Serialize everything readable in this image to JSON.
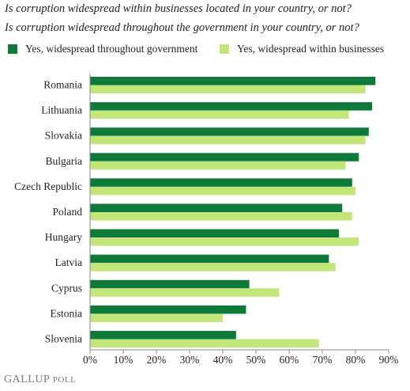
{
  "titles": {
    "line1": "Is corruption widespread within businesses located in your country, or not?",
    "line2": "Is corruption widespread throughout the government in your country, or not?"
  },
  "legend": {
    "government": "Yes, widespread throughout government",
    "businesses": "Yes, widespread within businesses"
  },
  "colors": {
    "government": "#0d7a3a",
    "businesses": "#c2e67a",
    "axis": "#888888"
  },
  "brand": {
    "gallup": "GALLUP",
    "poll": "POLL"
  },
  "chart_data": {
    "type": "bar",
    "orientation": "horizontal",
    "categories": [
      "Romania",
      "Lithuania",
      "Slovakia",
      "Bulgaria",
      "Czech Republic",
      "Poland",
      "Hungary",
      "Latvia",
      "Cyprus",
      "Estonia",
      "Slovenia"
    ],
    "series": [
      {
        "name": "Yes, widespread throughout government",
        "values": [
          86,
          85,
          84,
          81,
          79,
          76,
          75,
          72,
          48,
          47,
          44
        ]
      },
      {
        "name": "Yes, widespread within businesses",
        "values": [
          83,
          78,
          83,
          77,
          80,
          79,
          81,
          74,
          57,
          40,
          69
        ]
      }
    ],
    "xlim": [
      0,
      90
    ],
    "xticks": [
      "0%",
      "10%",
      "20%",
      "30%",
      "40%",
      "50%",
      "60%",
      "70%",
      "80%",
      "90%"
    ],
    "legend_position": "top",
    "grid": false
  }
}
